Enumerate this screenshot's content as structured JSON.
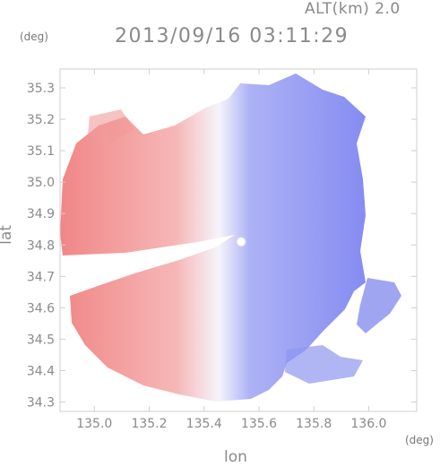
{
  "header": {
    "altitude_label": "ALT(km) 2.0",
    "timestamp": "2013/09/16 03:11:29"
  },
  "axes": {
    "x_unit": "(deg)",
    "y_unit": "(deg)",
    "x_title": "lon",
    "y_title": "lat",
    "x_range": [
      134.875,
      136.175
    ],
    "y_range": [
      34.27,
      35.36
    ],
    "x_ticks": [
      135.0,
      135.2,
      135.4,
      135.6,
      135.8,
      136.0
    ],
    "x_tick_labels": [
      "135.0",
      "135.2",
      "135.4",
      "135.6",
      "135.8",
      "136.0"
    ],
    "y_ticks": [
      34.3,
      34.4,
      34.5,
      34.6,
      34.7,
      34.8,
      34.9,
      35.0,
      35.1,
      35.2,
      35.3
    ],
    "y_tick_labels": [
      "34.3",
      "34.4",
      "34.5",
      "34.6",
      "34.7",
      "34.8",
      "34.9",
      "35.0",
      "35.1",
      "35.2",
      "35.3"
    ]
  },
  "map": {
    "radar_center": [
      135.535,
      34.81
    ],
    "colors": {
      "receding": "#f08080",
      "approaching": "#7f86f0",
      "neutral": "#f4f4fb"
    }
  }
}
